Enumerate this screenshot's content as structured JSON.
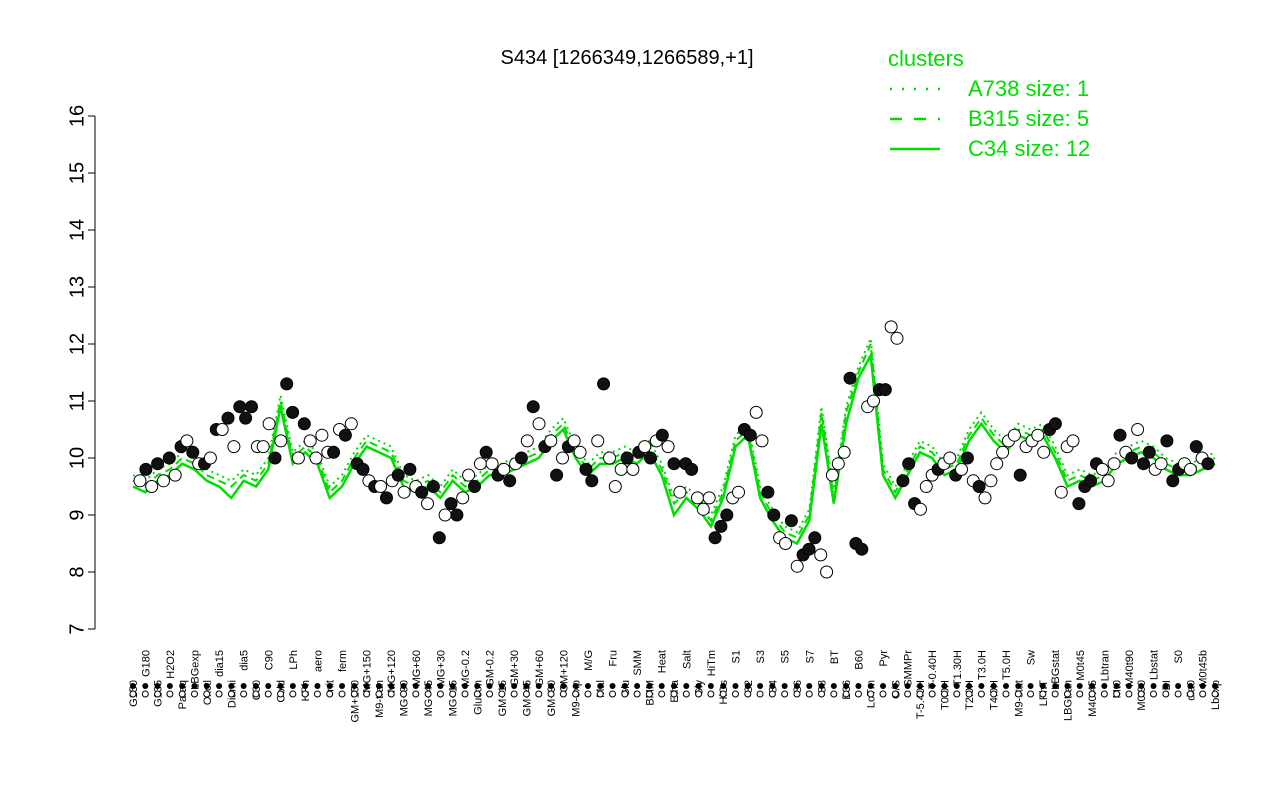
{
  "chart_data": {
    "type": "scatter",
    "title": "S434 [1266349,1266589,+1]",
    "xlabel": "",
    "ylabel": "",
    "ylim": [
      7,
      16
    ],
    "y_ticks": [
      7,
      8,
      9,
      10,
      11,
      12,
      13,
      14,
      15,
      16
    ],
    "legend": {
      "title": "clusters",
      "placement": "top-right",
      "entries": [
        {
          "label": "A738 size: 1",
          "style": "dotted"
        },
        {
          "label": "B315 size: 5",
          "style": "dashed"
        },
        {
          "label": "C34 size: 12",
          "style": "solid"
        }
      ]
    },
    "x_tick_labels": [
      "G150",
      "G180",
      "G135",
      "H2O2",
      "Paraq",
      "LBGexp",
      "Oxctl",
      "dia15",
      "Diami",
      "dia5",
      "C30",
      "C90",
      "Cold",
      "LPh",
      "HPh",
      "aero",
      "nit",
      "ferm",
      "GM+150",
      "MG+150",
      "M9-tran",
      "MG+120",
      "MG+90",
      "MG+60",
      "MG+45",
      "MG+30",
      "MG+15",
      "MG-0.2",
      "Glucon",
      "GM-0.2",
      "GM+15",
      "GM+30",
      "GM+45",
      "GM+60",
      "GM+90",
      "GM+120",
      "M9-exp",
      "M/G",
      "Mal",
      "Fru",
      "Glu",
      "SMM",
      "BMM",
      "Heat",
      "Etha",
      "Salt",
      "Gly",
      "HiTm",
      "HiOs",
      "S1",
      "S2",
      "S3",
      "S4",
      "S5",
      "S6",
      "S7",
      "S8",
      "BT",
      "B36",
      "B60",
      "LoTm",
      "Pyr",
      "G/S",
      "SMMPr",
      "T-5.40H",
      "T-0.40H",
      "T0.0H",
      "T1.30H",
      "T2.0H",
      "T3.0H",
      "T4.0H",
      "T5.0H",
      "M9-stat",
      "Sw",
      "LPhT",
      "LBGstat",
      "LBGtran",
      "M0t45",
      "M40t45",
      "Lbtran",
      "Mt0",
      "M40t90",
      "M0t90",
      "Lbstat",
      "BI",
      "S0",
      "dia0",
      "M0t45b",
      "Lbexp"
    ],
    "series": [
      {
        "style": "solid",
        "values": [
          9.5,
          9.4,
          9.6,
          9.7,
          9.9,
          9.8,
          9.6,
          9.5,
          9.3,
          9.6,
          9.5,
          9.8,
          10.9,
          9.9,
          10.1,
          9.9,
          9.3,
          9.5,
          9.9,
          10.2,
          10.1,
          10.0,
          9.5,
          9.4,
          9.5,
          9.3,
          9.6,
          9.4,
          9.5,
          9.7,
          9.7,
          9.8,
          9.9,
          10.0,
          10.3,
          10.5,
          10.0,
          9.7,
          9.9,
          9.9,
          10.0,
          9.9,
          10.1,
          9.7,
          9.0,
          9.3,
          9.1,
          8.8,
          9.3,
          10.2,
          10.4,
          9.3,
          8.9,
          8.6,
          8.5,
          8.9,
          10.6,
          9.2,
          10.6,
          11.4,
          11.8,
          9.7,
          9.3,
          9.7,
          10.1,
          10.0,
          9.7,
          9.8,
          10.3,
          10.6,
          10.3,
          10.1,
          10.4,
          10.3,
          10.4,
          10.0,
          9.5,
          9.6,
          9.5,
          9.6,
          9.9,
          10.0,
          10.1,
          10.0,
          9.8,
          9.7,
          9.7,
          9.8,
          9.9
        ]
      },
      {
        "style": "dashed",
        "values": [
          9.6,
          9.5,
          9.7,
          9.8,
          10.0,
          9.9,
          9.7,
          9.6,
          9.5,
          9.7,
          9.6,
          9.9,
          11.0,
          10.0,
          10.2,
          10.0,
          9.4,
          9.6,
          10.0,
          10.3,
          10.2,
          10.1,
          9.6,
          9.5,
          9.6,
          9.4,
          9.7,
          9.5,
          9.6,
          9.8,
          9.8,
          9.9,
          10.0,
          10.1,
          10.4,
          10.6,
          10.1,
          9.8,
          10.0,
          10.0,
          10.1,
          10.0,
          10.2,
          9.8,
          9.2,
          9.4,
          9.2,
          8.9,
          9.4,
          10.3,
          10.5,
          9.4,
          9.0,
          8.7,
          8.6,
          9.0,
          10.8,
          9.3,
          10.8,
          11.5,
          12.0,
          9.8,
          9.4,
          9.8,
          10.2,
          10.1,
          9.8,
          9.9,
          10.4,
          10.7,
          10.4,
          10.2,
          10.5,
          10.4,
          10.5,
          10.1,
          9.6,
          9.7,
          9.6,
          9.7,
          10.0,
          10.1,
          10.2,
          10.1,
          9.9,
          9.8,
          9.8,
          9.9,
          10.0
        ]
      },
      {
        "style": "dotted",
        "values": [
          9.7,
          9.6,
          9.8,
          9.9,
          10.1,
          10.0,
          9.8,
          9.7,
          9.6,
          9.8,
          9.7,
          10.0,
          11.1,
          10.1,
          10.3,
          10.1,
          9.5,
          9.7,
          10.1,
          10.4,
          10.3,
          10.2,
          9.7,
          9.6,
          9.7,
          9.5,
          9.8,
          9.6,
          9.7,
          9.9,
          9.9,
          10.0,
          10.1,
          10.2,
          10.5,
          10.7,
          10.2,
          9.9,
          10.1,
          10.1,
          10.2,
          10.1,
          10.3,
          9.9,
          9.3,
          9.5,
          9.3,
          9.0,
          9.5,
          10.4,
          10.6,
          9.5,
          9.1,
          8.8,
          8.7,
          9.1,
          10.9,
          9.4,
          10.9,
          11.6,
          12.1,
          9.9,
          9.5,
          9.9,
          10.3,
          10.2,
          9.9,
          10.0,
          10.5,
          10.8,
          10.5,
          10.3,
          10.6,
          10.5,
          10.6,
          10.2,
          9.7,
          9.8,
          9.7,
          9.8,
          10.1,
          10.2,
          10.3,
          10.2,
          10.0,
          9.9,
          9.9,
          10.0,
          10.1
        ]
      }
    ],
    "points": [
      [
        9.6,
        0
      ],
      [
        9.8,
        1
      ],
      [
        9.5,
        0
      ],
      [
        9.9,
        1
      ],
      [
        9.6,
        0
      ],
      [
        10.0,
        1
      ],
      [
        9.7,
        0
      ],
      [
        10.2,
        1
      ],
      [
        10.3,
        0
      ],
      [
        10.1,
        1
      ],
      [
        9.9,
        0
      ],
      [
        9.9,
        1
      ],
      [
        10.0,
        0
      ],
      [
        10.5,
        1
      ],
      [
        10.5,
        0
      ],
      [
        10.7,
        1
      ],
      [
        10.2,
        0
      ],
      [
        10.9,
        1
      ],
      [
        10.7,
        1
      ],
      [
        10.9,
        1
      ],
      [
        10.2,
        0
      ],
      [
        10.2,
        0
      ],
      [
        10.6,
        0
      ],
      [
        10.0,
        1
      ],
      [
        10.3,
        0
      ],
      [
        11.3,
        1
      ],
      [
        10.8,
        1
      ],
      [
        10.0,
        0
      ],
      [
        10.6,
        1
      ],
      [
        10.3,
        0
      ],
      [
        10.0,
        0
      ],
      [
        10.4,
        0
      ],
      [
        10.1,
        0
      ],
      [
        10.1,
        1
      ],
      [
        10.5,
        0
      ],
      [
        10.4,
        1
      ],
      [
        10.6,
        0
      ],
      [
        9.9,
        1
      ],
      [
        9.8,
        1
      ],
      [
        9.6,
        0
      ],
      [
        9.5,
        1
      ],
      [
        9.5,
        0
      ],
      [
        9.3,
        1
      ],
      [
        9.6,
        0
      ],
      [
        9.7,
        1
      ],
      [
        9.4,
        0
      ],
      [
        9.8,
        1
      ],
      [
        9.5,
        0
      ],
      [
        9.4,
        1
      ],
      [
        9.2,
        0
      ],
      [
        9.5,
        1
      ],
      [
        8.6,
        1
      ],
      [
        9.0,
        0
      ],
      [
        9.2,
        1
      ],
      [
        9.0,
        1
      ],
      [
        9.3,
        0
      ],
      [
        9.7,
        0
      ],
      [
        9.5,
        1
      ],
      [
        9.9,
        0
      ],
      [
        10.1,
        1
      ],
      [
        9.9,
        0
      ],
      [
        9.7,
        1
      ],
      [
        9.8,
        0
      ],
      [
        9.6,
        1
      ],
      [
        9.9,
        0
      ],
      [
        10.0,
        1
      ],
      [
        10.3,
        0
      ],
      [
        10.9,
        1
      ],
      [
        10.6,
        0
      ],
      [
        10.2,
        1
      ],
      [
        10.3,
        0
      ],
      [
        9.7,
        1
      ],
      [
        10.0,
        0
      ],
      [
        10.2,
        1
      ],
      [
        10.3,
        0
      ],
      [
        10.1,
        0
      ],
      [
        9.8,
        1
      ],
      [
        9.6,
        1
      ],
      [
        10.3,
        0
      ],
      [
        11.3,
        1
      ],
      [
        10.0,
        0
      ],
      [
        9.5,
        0
      ],
      [
        9.8,
        0
      ],
      [
        10.0,
        1
      ],
      [
        9.8,
        0
      ],
      [
        10.1,
        1
      ],
      [
        10.2,
        0
      ],
      [
        10.0,
        1
      ],
      [
        10.3,
        0
      ],
      [
        10.4,
        1
      ],
      [
        10.2,
        0
      ],
      [
        9.9,
        1
      ],
      [
        9.4,
        0
      ],
      [
        9.9,
        1
      ],
      [
        9.8,
        1
      ],
      [
        9.3,
        0
      ],
      [
        9.1,
        0
      ],
      [
        9.3,
        0
      ],
      [
        8.6,
        1
      ],
      [
        8.8,
        1
      ],
      [
        9.0,
        1
      ],
      [
        9.3,
        0
      ],
      [
        9.4,
        0
      ],
      [
        10.5,
        1
      ],
      [
        10.4,
        1
      ],
      [
        10.8,
        0
      ],
      [
        10.3,
        0
      ],
      [
        9.4,
        1
      ],
      [
        9.0,
        1
      ],
      [
        8.6,
        0
      ],
      [
        8.5,
        0
      ],
      [
        8.9,
        1
      ],
      [
        8.1,
        0
      ],
      [
        8.3,
        1
      ],
      [
        8.4,
        1
      ],
      [
        8.6,
        1
      ],
      [
        8.3,
        0
      ],
      [
        8.0,
        0
      ],
      [
        9.7,
        0
      ],
      [
        9.9,
        0
      ],
      [
        10.1,
        0
      ],
      [
        11.4,
        1
      ],
      [
        8.5,
        1
      ],
      [
        8.4,
        1
      ],
      [
        10.9,
        0
      ],
      [
        11.0,
        0
      ],
      [
        11.2,
        1
      ],
      [
        11.2,
        1
      ],
      [
        12.3,
        0
      ],
      [
        12.1,
        0
      ],
      [
        9.6,
        1
      ],
      [
        9.9,
        1
      ],
      [
        9.2,
        1
      ],
      [
        9.1,
        0
      ],
      [
        9.5,
        0
      ],
      [
        9.7,
        0
      ],
      [
        9.8,
        1
      ],
      [
        9.9,
        0
      ],
      [
        10.0,
        0
      ],
      [
        9.7,
        1
      ],
      [
        9.8,
        0
      ],
      [
        10.0,
        1
      ],
      [
        9.6,
        0
      ],
      [
        9.5,
        1
      ],
      [
        9.3,
        0
      ],
      [
        9.6,
        0
      ],
      [
        9.9,
        0
      ],
      [
        10.1,
        0
      ],
      [
        10.3,
        0
      ],
      [
        10.4,
        0
      ],
      [
        9.7,
        1
      ],
      [
        10.2,
        0
      ],
      [
        10.3,
        0
      ],
      [
        10.4,
        0
      ],
      [
        10.1,
        0
      ],
      [
        10.5,
        1
      ],
      [
        10.6,
        1
      ],
      [
        9.4,
        0
      ],
      [
        10.2,
        0
      ],
      [
        10.3,
        0
      ],
      [
        9.2,
        1
      ],
      [
        9.5,
        1
      ],
      [
        9.6,
        1
      ],
      [
        9.9,
        1
      ],
      [
        9.8,
        0
      ],
      [
        9.6,
        0
      ],
      [
        9.9,
        0
      ],
      [
        10.4,
        1
      ],
      [
        10.1,
        0
      ],
      [
        10.0,
        1
      ],
      [
        10.5,
        0
      ],
      [
        9.9,
        1
      ],
      [
        10.1,
        1
      ],
      [
        9.8,
        0
      ],
      [
        9.9,
        0
      ],
      [
        10.3,
        1
      ],
      [
        9.6,
        1
      ],
      [
        9.8,
        1
      ],
      [
        9.9,
        0
      ],
      [
        9.8,
        0
      ],
      [
        10.2,
        1
      ],
      [
        10.0,
        0
      ],
      [
        9.9,
        1
      ]
    ]
  }
}
